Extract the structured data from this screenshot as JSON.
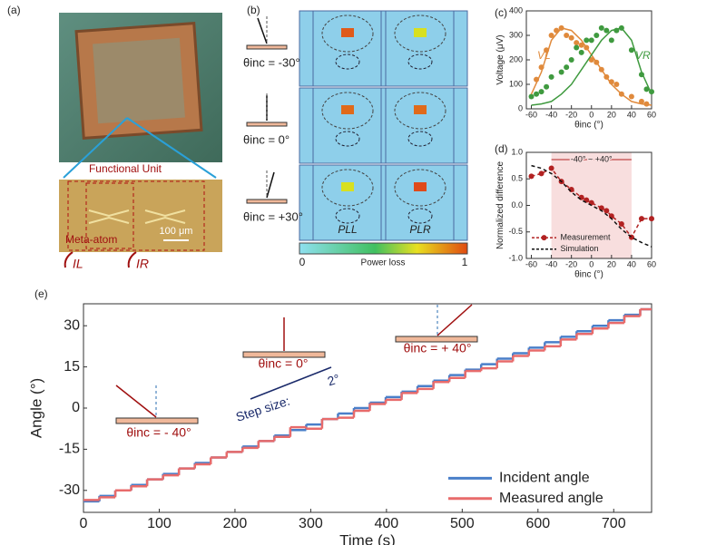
{
  "panel_a": {
    "label": "(a)",
    "functional_unit": "Functional Unit",
    "meta_atom": "Meta-atom",
    "scale": "100 μm",
    "currents": [
      "IL",
      "IR"
    ]
  },
  "panel_b": {
    "label": "(b)",
    "angles": [
      "θinc = -30°",
      "θinc = 0°",
      "θinc = +30°"
    ],
    "pl": [
      "PLL",
      "PLR"
    ],
    "colorbar": {
      "min": 0,
      "max": 1,
      "label": "Power loss"
    }
  },
  "chart_data": [
    {
      "type": "scatter",
      "label": "(c)",
      "xlabel": "θinc (°)",
      "ylabel": "Voltage (μV)",
      "xlim": [
        -65,
        60
      ],
      "xticks": [
        -60,
        -40,
        -20,
        0,
        20,
        40,
        60
      ],
      "ylim": [
        0,
        400
      ],
      "yticks": [
        0,
        100,
        200,
        300,
        400
      ],
      "series": [
        {
          "name": "VL",
          "color": "#e08a3c",
          "style": "points",
          "x": [
            -55,
            -50,
            -45,
            -40,
            -35,
            -30,
            -25,
            -20,
            -15,
            -10,
            -5,
            0,
            5,
            10,
            15,
            20,
            25,
            30,
            40,
            50,
            55
          ],
          "values": [
            120,
            170,
            240,
            300,
            320,
            330,
            300,
            290,
            270,
            260,
            250,
            200,
            190,
            160,
            130,
            110,
            100,
            60,
            50,
            30,
            20
          ]
        },
        {
          "name": "VR",
          "color": "#3f9a3f",
          "style": "points",
          "x": [
            -60,
            -55,
            -50,
            -45,
            -40,
            -30,
            -25,
            -20,
            -15,
            -10,
            -5,
            0,
            5,
            10,
            15,
            20,
            25,
            30,
            40,
            50,
            55,
            60
          ],
          "values": [
            50,
            60,
            70,
            90,
            130,
            150,
            170,
            200,
            250,
            230,
            280,
            280,
            300,
            330,
            320,
            280,
            320,
            330,
            240,
            140,
            80,
            70
          ]
        },
        {
          "color": "#e08a3c",
          "style": "line",
          "x": [
            -60,
            -50,
            -40,
            -30,
            -20,
            -10,
            0,
            10,
            20,
            30,
            40,
            50,
            60
          ],
          "values": [
            60,
            150,
            280,
            330,
            320,
            280,
            220,
            160,
            100,
            60,
            30,
            20,
            15
          ]
        },
        {
          "color": "#3f9a3f",
          "style": "line",
          "x": [
            -60,
            -50,
            -40,
            -30,
            -20,
            -10,
            0,
            10,
            20,
            30,
            40,
            50,
            60
          ],
          "values": [
            15,
            20,
            30,
            60,
            100,
            160,
            220,
            280,
            320,
            330,
            280,
            150,
            60
          ]
        }
      ]
    },
    {
      "type": "line",
      "label": "(d)",
      "xlabel": "θinc (°)",
      "ylabel": "Normalized difference",
      "xlim": [
        -65,
        60
      ],
      "xticks": [
        -60,
        -40,
        -20,
        0,
        20,
        40,
        60
      ],
      "ylim": [
        -1,
        1
      ],
      "yticks": [
        {
          "value": -1,
          "label": "-1.0"
        },
        {
          "value": -0.5,
          "label": "-0.5"
        },
        {
          "value": 0,
          "label": "0.0"
        },
        {
          "value": 0.5,
          "label": "0.5"
        },
        {
          "value": 1,
          "label": "1.0"
        }
      ],
      "highlight": [
        -40,
        40
      ],
      "annotation": "-40° ~ +40°",
      "legend": "lower left",
      "series": [
        {
          "name": "Measurement",
          "color": "#b22222",
          "style": "line",
          "marker": true,
          "dash": true,
          "x": [
            -60,
            -50,
            -40,
            -30,
            -20,
            -10,
            -5,
            0,
            10,
            15,
            20,
            30,
            40,
            50,
            60
          ],
          "values": [
            0.55,
            0.6,
            0.7,
            0.45,
            0.3,
            0.15,
            0.1,
            0.05,
            -0.05,
            -0.1,
            -0.2,
            -0.35,
            -0.6,
            -0.25,
            -0.25
          ]
        },
        {
          "name": "Simulation",
          "color": "#111111",
          "style": "line",
          "dash": true,
          "x": [
            -60,
            -50,
            -40,
            -30,
            -20,
            -10,
            0,
            10,
            20,
            30,
            40,
            50,
            60
          ],
          "values": [
            0.75,
            0.7,
            0.6,
            0.45,
            0.25,
            0.1,
            0,
            -0.1,
            -0.25,
            -0.45,
            -0.6,
            -0.7,
            -0.78
          ]
        }
      ]
    },
    {
      "type": "line",
      "label": "(e)",
      "xlabel": "Time (s)",
      "ylabel": "Angle (°)",
      "xlim": [
        0,
        750
      ],
      "xticks": [
        0,
        100,
        200,
        300,
        400,
        500,
        600,
        700
      ],
      "ylim": [
        -38,
        38
      ],
      "yticks": [
        -30,
        -15,
        0,
        15,
        30
      ],
      "legend": "lower right",
      "annotations": [
        "θinc = - 40°",
        "θinc = 0°",
        "θinc = + 40°",
        "Step size:",
        "2°"
      ],
      "series": [
        {
          "name": "Incident angle",
          "color": "#4a7fc9",
          "style": "line",
          "drawstyle": "steps-post",
          "x": [
            0,
            21,
            42,
            63,
            84,
            105,
            126,
            147,
            168,
            189,
            210,
            231,
            252,
            273,
            294,
            315,
            336,
            357,
            378,
            399,
            420,
            441,
            462,
            483,
            504,
            525,
            546,
            567,
            588,
            609,
            630,
            651,
            672,
            693,
            714,
            735
          ],
          "values": [
            -34,
            -32,
            -30,
            -28,
            -26,
            -24,
            -22,
            -20,
            -18,
            -16,
            -14,
            -12,
            -10,
            -8,
            -6,
            -4,
            -2,
            0,
            2,
            4,
            6,
            8,
            10,
            12,
            14,
            16,
            18,
            20,
            22,
            24,
            26,
            28,
            30,
            32,
            34,
            36
          ]
        },
        {
          "name": "Measured angle",
          "color": "#e86b6b",
          "style": "line",
          "drawstyle": "steps-post",
          "x": [
            0,
            21,
            42,
            63,
            84,
            105,
            126,
            147,
            168,
            189,
            210,
            231,
            252,
            273,
            294,
            315,
            336,
            357,
            378,
            399,
            420,
            441,
            462,
            483,
            504,
            525,
            546,
            567,
            588,
            609,
            630,
            651,
            672,
            693,
            714,
            735
          ],
          "values": [
            -33.5,
            -32.5,
            -30,
            -28.5,
            -26,
            -24.5,
            -22,
            -20.5,
            -18,
            -16,
            -14.5,
            -12,
            -10.5,
            -7,
            -7.5,
            -4,
            -3.5,
            -1,
            1.5,
            3,
            5.5,
            7,
            9.5,
            11,
            13.5,
            14.5,
            17,
            19,
            21,
            22.5,
            25,
            27,
            29,
            31,
            33.5,
            36
          ]
        }
      ]
    }
  ]
}
